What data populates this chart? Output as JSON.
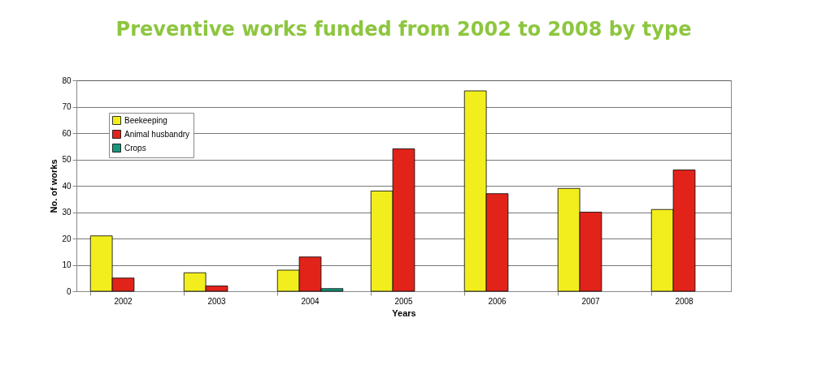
{
  "chart_data": {
    "type": "bar",
    "title": "Preventive works funded from 2002 to 2008 by type",
    "xlabel": "Years",
    "ylabel": "No. of works",
    "categories": [
      "2002",
      "2003",
      "2004",
      "2005",
      "2006",
      "2007",
      "2008"
    ],
    "series": [
      {
        "name": "Beekeeping",
        "color": "#f2ee1e",
        "values": [
          21,
          7,
          8,
          38,
          76,
          39,
          31
        ]
      },
      {
        "name": "Animal husbandry",
        "color": "#e2231a",
        "values": [
          5,
          2,
          13,
          54,
          37,
          30,
          46
        ]
      },
      {
        "name": "Crops",
        "color": "#17987a",
        "values": [
          null,
          null,
          1,
          null,
          null,
          null,
          null
        ]
      }
    ],
    "ylim": [
      0,
      80
    ],
    "yticks": [
      0,
      10,
      20,
      30,
      40,
      50,
      60,
      70,
      80
    ],
    "grid": "y",
    "legend": "top left"
  }
}
